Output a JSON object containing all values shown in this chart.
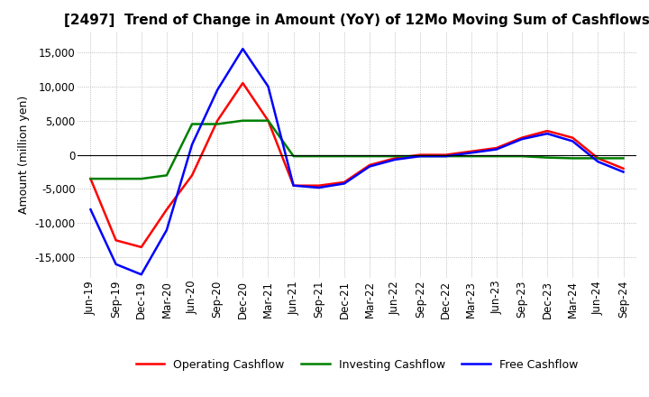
{
  "title": "[2497]  Trend of Change in Amount (YoY) of 12Mo Moving Sum of Cashflows",
  "ylabel": "Amount (million yen)",
  "xlabels": [
    "Jun-19",
    "Sep-19",
    "Dec-19",
    "Mar-20",
    "Jun-20",
    "Sep-20",
    "Dec-20",
    "Mar-21",
    "Jun-21",
    "Sep-21",
    "Dec-21",
    "Mar-22",
    "Jun-22",
    "Sep-22",
    "Dec-22",
    "Mar-23",
    "Jun-23",
    "Sep-23",
    "Dec-23",
    "Mar-24",
    "Jun-24",
    "Sep-24"
  ],
  "operating": [
    -3500,
    -12500,
    -13500,
    -8000,
    -3000,
    5000,
    10500,
    5000,
    -4500,
    -4500,
    -4000,
    -1500,
    -500,
    0,
    0,
    500,
    1000,
    2500,
    3500,
    2500,
    -500,
    -2000
  ],
  "investing": [
    -3500,
    -3500,
    -3500,
    -3000,
    4500,
    4500,
    5000,
    5000,
    -200,
    -200,
    -200,
    -200,
    -200,
    -200,
    -200,
    -200,
    -200,
    -200,
    -400,
    -500,
    -500,
    -500
  ],
  "free": [
    -8000,
    -16000,
    -17500,
    -11000,
    1500,
    9500,
    15500,
    10000,
    -4500,
    -4800,
    -4200,
    -1700,
    -700,
    -200,
    -200,
    300,
    800,
    2300,
    3100,
    2000,
    -1000,
    -2500
  ],
  "ylim": [
    -18000,
    18000
  ],
  "yticks": [
    -15000,
    -10000,
    -5000,
    0,
    5000,
    10000,
    15000
  ],
  "operating_color": "#ff0000",
  "investing_color": "#008000",
  "free_color": "#0000ff",
  "grid_color": "#aaaaaa",
  "background_color": "#ffffff",
  "title_fontsize": 11,
  "axis_fontsize": 8.5,
  "ylabel_fontsize": 9,
  "legend_fontsize": 9
}
